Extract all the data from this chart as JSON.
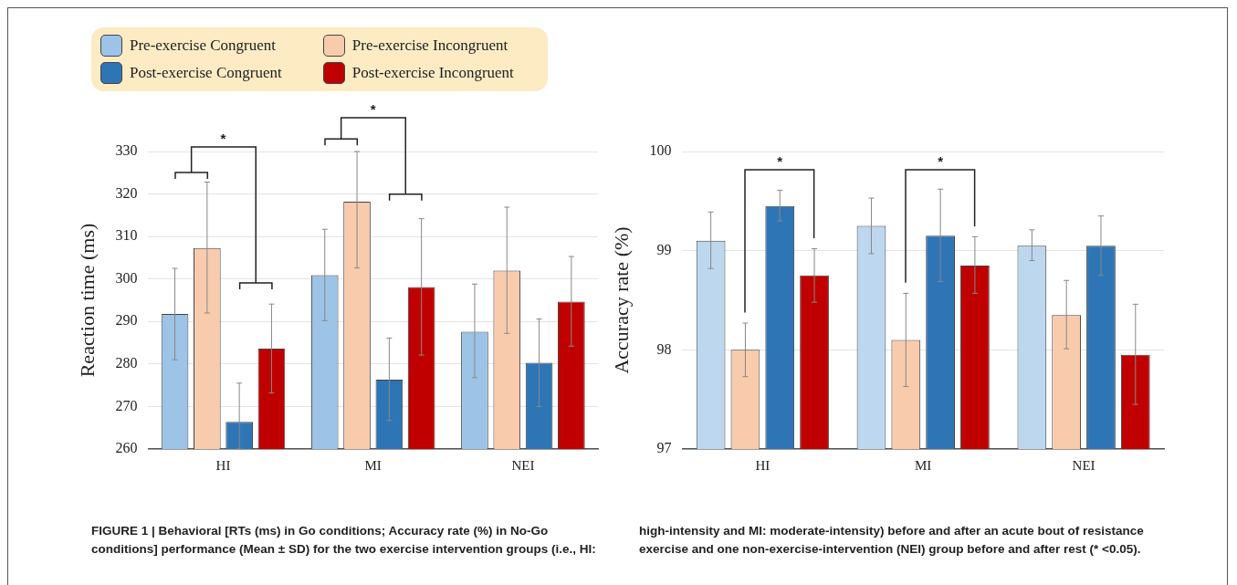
{
  "chart_data": [
    {
      "type": "bar",
      "ylabel": "Reaction time (ms)",
      "categories": [
        "HI",
        "MI",
        "NEI"
      ],
      "ylim": [
        260,
        330
      ],
      "yticks": [
        260,
        270,
        280,
        290,
        300,
        310,
        320,
        330
      ],
      "grid": "y",
      "legend": "top left",
      "series": [
        {
          "name": "Pre-exercise Congruent",
          "color": "#9dc3e6",
          "values": [
            291.8,
            300.9,
            287.6
          ],
          "errors": [
            [
              281,
              302.5
            ],
            [
              290.2,
              311.7
            ],
            [
              276.8,
              298.8
            ]
          ]
        },
        {
          "name": "Pre-exercise Incongruent",
          "color": "#f8cbad",
          "values": [
            307.3,
            318.2,
            302
          ],
          "errors": [
            [
              292,
              322.8
            ],
            [
              302.6,
              330
            ],
            [
              287.2,
              316.9
            ]
          ]
        },
        {
          "name": "Post-exercise Congruent",
          "color": "#2e75b6",
          "values": [
            266.4,
            276.3,
            280.3
          ],
          "errors": [
            [
              260,
              275.5
            ],
            [
              266.7,
              286.1
            ],
            [
              270,
              290.6
            ]
          ]
        },
        {
          "name": "Post-exercise Incongruent",
          "color": "#c00000",
          "values": [
            283.6,
            298.1,
            294.7
          ],
          "errors": [
            [
              273.2,
              294.1
            ],
            [
              282.1,
              314.2
            ],
            [
              284.2,
              305.3
            ]
          ]
        }
      ],
      "annotations": [
        "*",
        "*",
        "FIGURE 1 | Behavioral [RTs (ms) in Go conditions; Accuracy rate (%) in No-Go conditions] performance (Mean ± SD) for the two exercise intervention groups (i.e., HI: high-intensity and MI: moderate-intensity) before and after an acute bout of resistance exercise and one non-exercise-intervention (NEI) group before and after rest (* <0.05)."
      ]
    },
    {
      "type": "bar",
      "ylabel": "Accuracy rate (%)",
      "categories": [
        "HI",
        "MI",
        "NEI"
      ],
      "ylim": [
        97,
        100
      ],
      "yticks": [
        97,
        98,
        99,
        100
      ],
      "grid": "y",
      "series": [
        {
          "color": "#bdd7ee",
          "values": [
            99.1,
            99.25,
            99.05
          ],
          "errors": [
            [
              98.82,
              99.39
            ],
            [
              98.97,
              99.53
            ],
            [
              98.9,
              99.21
            ]
          ]
        },
        {
          "color": "#f8cbad",
          "values": [
            98.0,
            98.1,
            98.35
          ],
          "errors": [
            [
              97.73,
              98.27
            ],
            [
              97.63,
              98.57
            ],
            [
              98.01,
              98.7
            ]
          ]
        },
        {
          "color": "#2e75b6",
          "values": [
            99.45,
            99.15,
            99.05
          ],
          "errors": [
            [
              99.3,
              99.61
            ],
            [
              98.69,
              99.62
            ],
            [
              98.75,
              99.35
            ]
          ]
        },
        {
          "color": "#c00000",
          "values": [
            98.75,
            98.85,
            97.95
          ],
          "errors": [
            [
              98.48,
              99.02
            ],
            [
              98.57,
              99.14
            ],
            [
              97.45,
              98.46
            ]
          ]
        }
      ],
      "annotations": [
        "*",
        "*"
      ]
    }
  ]
}
